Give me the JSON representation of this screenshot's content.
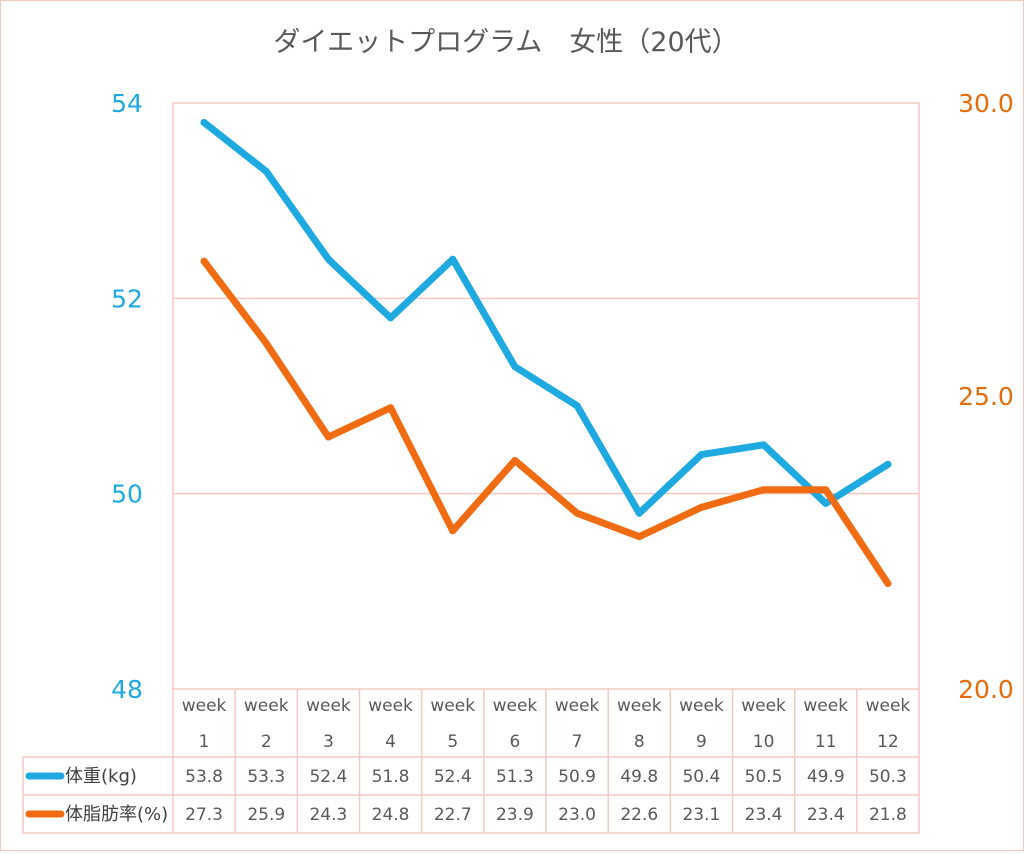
{
  "chart_data": {
    "type": "line",
    "title": "ダイエットプログラム　女性（20代）",
    "categories": [
      [
        "week",
        "1"
      ],
      [
        "week",
        "2"
      ],
      [
        "week",
        "3"
      ],
      [
        "week",
        "4"
      ],
      [
        "week",
        "5"
      ],
      [
        "week",
        "6"
      ],
      [
        "week",
        "7"
      ],
      [
        "week",
        "8"
      ],
      [
        "week",
        "9"
      ],
      [
        "week",
        "10"
      ],
      [
        "week",
        "11"
      ],
      [
        "week",
        "12"
      ]
    ],
    "y_left": {
      "ylim": [
        48,
        54
      ],
      "ticks": [
        "54",
        "52",
        "50",
        "48"
      ],
      "tick_values": [
        54,
        52,
        50,
        48
      ]
    },
    "y_right": {
      "ylim": [
        20,
        30
      ],
      "ticks": [
        "30.0",
        "25.0",
        "20.0"
      ],
      "tick_values": [
        30,
        25,
        20
      ]
    },
    "grid": true,
    "legend": "data table below chart",
    "series": [
      {
        "name": "体重(kg)",
        "axis": "left",
        "color": "#1fa9e1",
        "values": [
          53.8,
          53.3,
          52.4,
          51.8,
          52.4,
          51.3,
          50.9,
          49.8,
          50.4,
          50.5,
          49.9,
          50.3
        ],
        "labels": [
          "53.8",
          "53.3",
          "52.4",
          "51.8",
          "52.4",
          "51.3",
          "50.9",
          "49.8",
          "50.4",
          "50.5",
          "49.9",
          "50.3"
        ]
      },
      {
        "name": "体脂肪率(%)",
        "axis": "right",
        "color": "#f06b12",
        "values": [
          27.3,
          25.9,
          24.3,
          24.8,
          22.7,
          23.9,
          23.0,
          22.6,
          23.1,
          23.4,
          23.4,
          21.8
        ],
        "labels": [
          "27.3",
          "25.9",
          "24.3",
          "24.8",
          "22.7",
          "23.9",
          "23.0",
          "22.6",
          "23.1",
          "23.4",
          "23.4",
          "21.8"
        ]
      }
    ]
  }
}
